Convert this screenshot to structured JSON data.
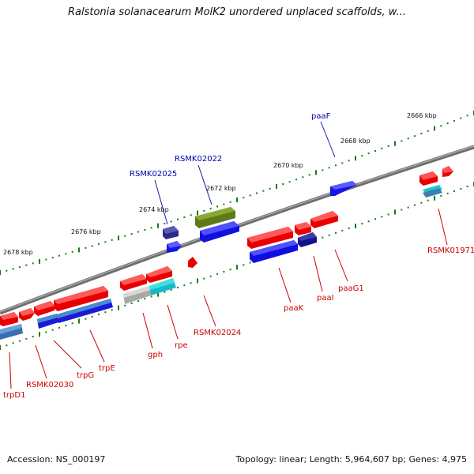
{
  "title": "Ralstonia solanacearum MolK2 unordered unplaced scaffolds, w...",
  "footer": {
    "accession": "Accession: NS_000197",
    "summary": "Topology: linear; Length: 5,964,607 bp; Genes: 4,975"
  },
  "colors": {
    "forward_gene": "#ff1a1a",
    "reverse_gene": "#1a1aff",
    "label_red": "#cc0000",
    "label_blue": "#0000aa",
    "scale_dots": "#1a7a1a",
    "backbone": "#707070"
  },
  "scale_ticks": [
    {
      "label": "2666 kbp"
    },
    {
      "label": "2668 kbp"
    },
    {
      "label": "2670 kbp"
    },
    {
      "label": "2672 kbp"
    },
    {
      "label": "2674 kbp"
    },
    {
      "label": "2676 kbp"
    },
    {
      "label": "2678 kbp"
    }
  ],
  "gene_labels_top": [
    "paaF",
    "RSMK02022",
    "RSMK02025"
  ],
  "gene_labels_bottom": [
    "RSMK01971",
    "paaG1",
    "paaI",
    "paaK",
    "RSMK02024",
    "rpe",
    "gph",
    "trpE",
    "trpG",
    "RSMK02030",
    "trpD1"
  ]
}
